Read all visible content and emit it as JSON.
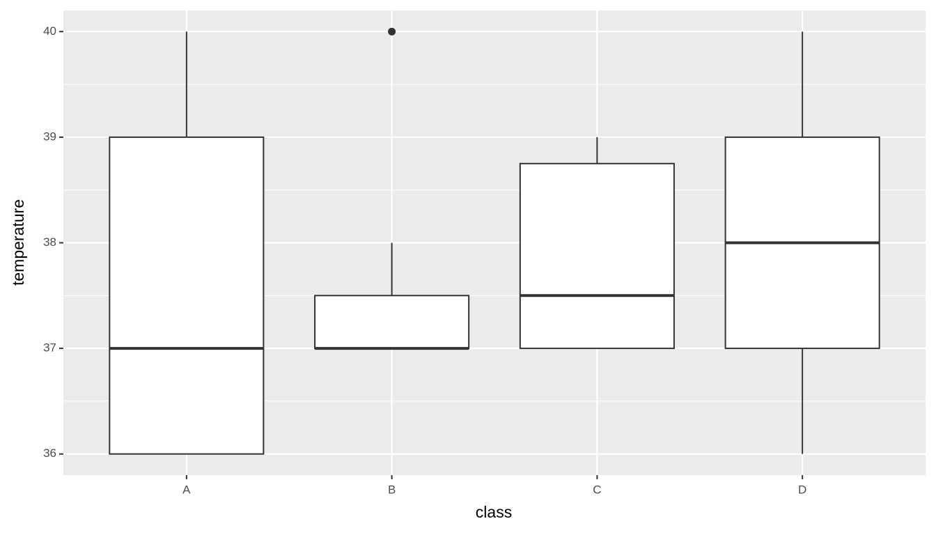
{
  "chart_data": {
    "type": "box",
    "x_label": "class",
    "y_label": "temperature",
    "categories": [
      "A",
      "B",
      "C",
      "D"
    ],
    "min": [
      36,
      37,
      37,
      36
    ],
    "q1": [
      36,
      37,
      37,
      37
    ],
    "median": [
      37,
      37,
      37.5,
      38
    ],
    "q3": [
      39,
      37.5,
      38.75,
      39
    ],
    "max": [
      40,
      38,
      39,
      40
    ],
    "outliers": [
      [],
      [
        40
      ],
      [],
      []
    ],
    "ylim": [
      35.8,
      40.2
    ],
    "yticks": [
      36,
      37,
      38,
      39,
      40
    ],
    "yminor": [
      36.5,
      37.5,
      38.5,
      39.5
    ],
    "grid": true,
    "box_fill": "#ffffff",
    "line_color": "#333333",
    "panel_color": "#ebebeb"
  }
}
